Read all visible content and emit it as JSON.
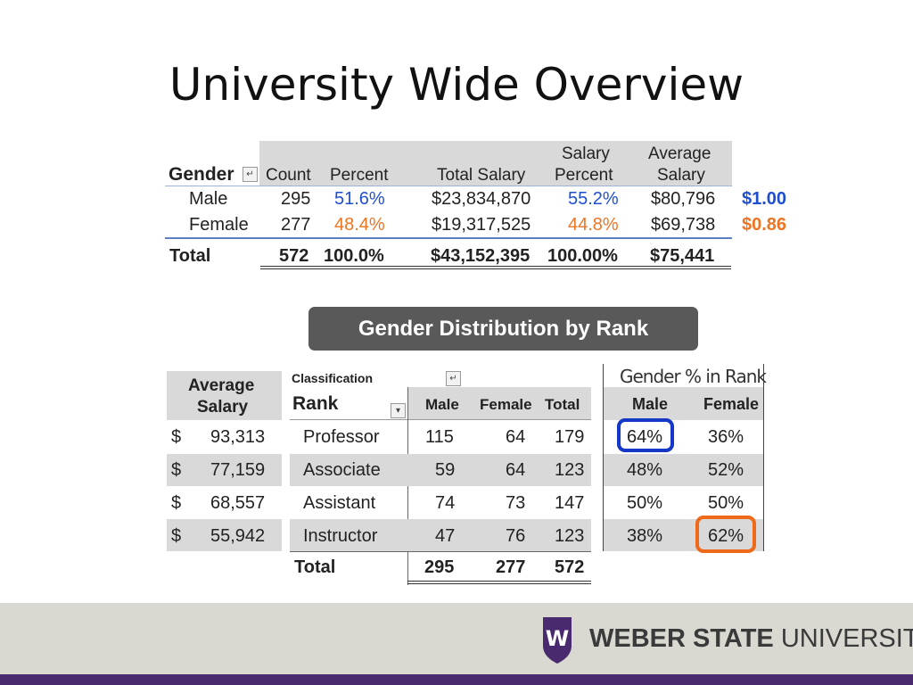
{
  "title": "University Wide Overview",
  "table1": {
    "headers": {
      "gender": "Gender",
      "count": "Count",
      "percent": "Percent",
      "total_salary": "Total Salary",
      "salary_percent_1": "Salary",
      "salary_percent_2": "Percent",
      "avg_salary_1": "Average",
      "avg_salary_2": "Salary"
    },
    "rows": [
      {
        "gender": "Male",
        "count": "295",
        "percent": "51.6%",
        "total_salary": "$23,834,870",
        "salary_percent": "55.2%",
        "avg_salary": "$80,796",
        "ratio": "$1.00"
      },
      {
        "gender": "Female",
        "count": "277",
        "percent": "48.4%",
        "total_salary": "$19,317,525",
        "salary_percent": "44.8%",
        "avg_salary": "$69,738",
        "ratio": "$0.86"
      }
    ],
    "total": {
      "label": "Total",
      "count": "572",
      "percent": "100.0%",
      "total_salary": "$43,152,395",
      "salary_percent": "100.00%",
      "avg_salary": "$75,441"
    }
  },
  "badge": "Gender Distribution by Rank",
  "table2": {
    "avg_salary_header_1": "Average",
    "avg_salary_header_2": "Salary",
    "classification": "Classification",
    "rank_header": "Rank",
    "male_header": "Male",
    "female_header": "Female",
    "total_header": "Total",
    "rows": [
      {
        "currency": "$",
        "avg": "93,313",
        "rank": "Professor",
        "male": "115",
        "female": "64",
        "total": "179"
      },
      {
        "currency": "$",
        "avg": "77,159",
        "rank": "Associate",
        "male": "59",
        "female": "64",
        "total": "123"
      },
      {
        "currency": "$",
        "avg": "68,557",
        "rank": "Assistant",
        "male": "74",
        "female": "73",
        "total": "147"
      },
      {
        "currency": "$",
        "avg": "55,942",
        "rank": "Instructor",
        "male": "47",
        "female": "76",
        "total": "123"
      }
    ],
    "total": {
      "label": "Total",
      "male": "295",
      "female": "277",
      "total": "572"
    }
  },
  "table3": {
    "title": "Gender % in Rank",
    "male_header": "Male",
    "female_header": "Female",
    "rows": [
      {
        "male": "64%",
        "female": "36%"
      },
      {
        "male": "48%",
        "female": "52%"
      },
      {
        "male": "50%",
        "female": "50%"
      },
      {
        "male": "38%",
        "female": "62%"
      }
    ]
  },
  "footer": {
    "brand_bold": "WEBER STATE",
    "brand_regular": "UNIVERSITY",
    "logo_letter": "W"
  },
  "colors": {
    "blue": "#1f4fd1",
    "orange": "#ee7422",
    "purple": "#4a2a6f",
    "highlight_blue": "#1538c8",
    "highlight_orange": "#ee6a1a"
  }
}
